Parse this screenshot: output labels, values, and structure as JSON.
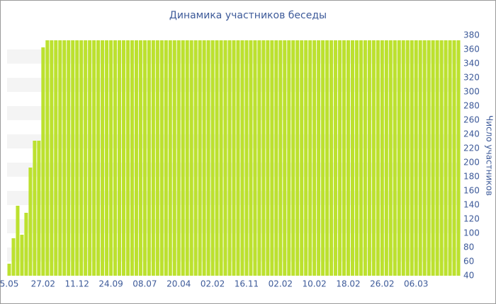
{
  "chart_data": {
    "type": "bar",
    "title": "Динамика участников беседы",
    "y_label": "Число участников",
    "categories": [
      "5.05",
      null,
      null,
      null,
      null,
      null,
      null,
      null,
      "27.02",
      null,
      null,
      null,
      null,
      null,
      null,
      null,
      "11.12",
      null,
      null,
      null,
      null,
      null,
      null,
      null,
      "24.09",
      null,
      null,
      null,
      null,
      null,
      null,
      null,
      "08.07",
      null,
      null,
      null,
      null,
      null,
      null,
      null,
      "20.04",
      null,
      null,
      null,
      null,
      null,
      null,
      null,
      "02.02",
      null,
      null,
      null,
      null,
      null,
      null,
      null,
      "16.11",
      null,
      null,
      null,
      null,
      null,
      null,
      null,
      "02.02",
      null,
      null,
      null,
      null,
      null,
      null,
      null,
      "10.02",
      null,
      null,
      null,
      null,
      null,
      null,
      null,
      "18.02",
      null,
      null,
      null,
      null,
      null,
      null,
      null,
      "26.02",
      null,
      null,
      null,
      null,
      null,
      null,
      null,
      "06.03",
      null,
      null,
      null,
      null,
      null,
      null,
      null,
      null,
      null,
      null
    ],
    "values": [
      57,
      93,
      139,
      98,
      129,
      193,
      231,
      231,
      363,
      373,
      373,
      373,
      373,
      373,
      373,
      373,
      373,
      373,
      373,
      373,
      373,
      373,
      373,
      373,
      373,
      373,
      373,
      373,
      373,
      373,
      373,
      373,
      373,
      373,
      373,
      373,
      373,
      373,
      373,
      373,
      373,
      373,
      373,
      373,
      373,
      373,
      373,
      373,
      373,
      373,
      373,
      373,
      373,
      373,
      373,
      373,
      373,
      373,
      373,
      373,
      373,
      373,
      373,
      373,
      373,
      373,
      373,
      373,
      373,
      373,
      373,
      373,
      373,
      373,
      373,
      373,
      373,
      373,
      373,
      373,
      373,
      373,
      373,
      373,
      373,
      373,
      373,
      373,
      373,
      373,
      373,
      373,
      373,
      373,
      373,
      373,
      373,
      373,
      373,
      373,
      373,
      373,
      373,
      373,
      373,
      373,
      373
    ],
    "color": "#bce12f",
    "ylim": [
      40,
      380
    ],
    "yticks": [
      40,
      60,
      80,
      100,
      120,
      140,
      160,
      180,
      200,
      220,
      240,
      260,
      280,
      300,
      320,
      340,
      360,
      380
    ],
    "grid": "bands"
  }
}
